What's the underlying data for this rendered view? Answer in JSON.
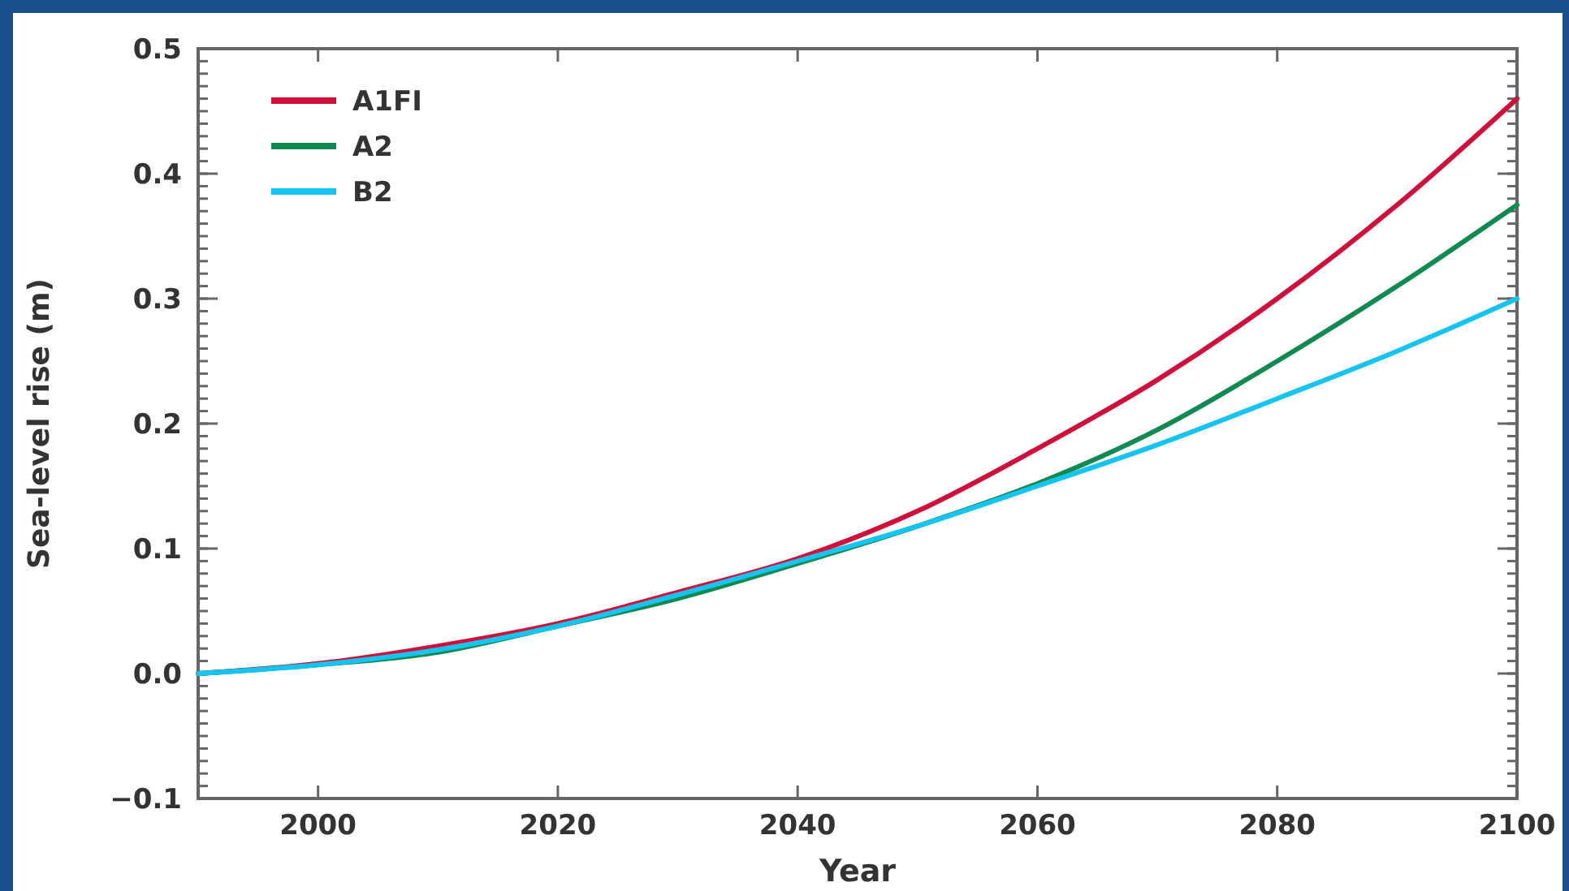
{
  "chart_data": {
    "type": "line",
    "xlabel": "Year",
    "ylabel": "Sea-level rise (m)",
    "x": [
      1990,
      2000,
      2010,
      2020,
      2030,
      2040,
      2050,
      2060,
      2070,
      2080,
      2090,
      2100
    ],
    "series": [
      {
        "name": "A1FI",
        "color": "#d0103a",
        "values": [
          0,
          0.008,
          0.022,
          0.04,
          0.065,
          0.092,
          0.13,
          0.18,
          0.235,
          0.3,
          0.375,
          0.46
        ]
      },
      {
        "name": "A2",
        "color": "#0f8a50",
        "values": [
          0,
          0.007,
          0.017,
          0.038,
          0.06,
          0.088,
          0.118,
          0.152,
          0.195,
          0.25,
          0.31,
          0.375
        ]
      },
      {
        "name": "B2",
        "color": "#16c4f0",
        "values": [
          0,
          0.007,
          0.019,
          0.038,
          0.063,
          0.09,
          0.118,
          0.15,
          0.183,
          0.22,
          0.258,
          0.3
        ]
      }
    ],
    "xlim": [
      1990,
      2100
    ],
    "xticks": [
      2000,
      2020,
      2040,
      2060,
      2080,
      2100
    ],
    "ylim": [
      -0.1,
      0.5
    ],
    "yticks": [
      {
        "value": -0.1,
        "label": "−0.1"
      },
      {
        "value": 0,
        "label": "0.0"
      },
      0.1,
      0.2,
      0.3,
      0.4,
      0.5
    ],
    "grid": false,
    "legend": "top left",
    "marker": "none",
    "line_style": "solid"
  }
}
